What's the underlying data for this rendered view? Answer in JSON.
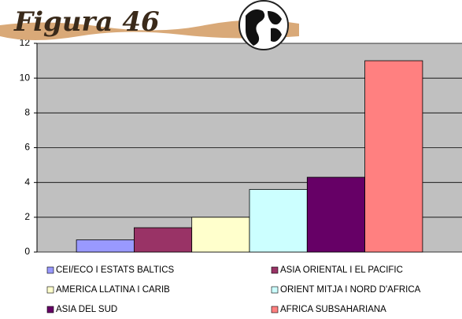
{
  "chart_data": {
    "type": "bar",
    "title": "Figura 46",
    "categories": [
      null
    ],
    "series": [
      {
        "name": "CEI/ECO I ESTATS BALTICS",
        "color": "#9999ff",
        "values": [
          0.7
        ]
      },
      {
        "name": "ASIA ORIENTAL I EL PACIFIC",
        "color": "#993366",
        "values": [
          1.4
        ]
      },
      {
        "name": "AMERICA LLATINA I CARIB",
        "color": "#ffffcc",
        "values": [
          2.0
        ]
      },
      {
        "name": "ORIENT MITJA I NORD D'AFRICA",
        "color": "#ccffff",
        "values": [
          3.6
        ]
      },
      {
        "name": "ASIA DEL SUD",
        "color": "#660066",
        "values": [
          4.3
        ]
      },
      {
        "name": "AFRICA SUBSAHARIANA",
        "color": "#ff8080",
        "values": [
          11.0
        ]
      }
    ],
    "ylim": [
      0,
      12
    ],
    "yticks": [
      0,
      2,
      4,
      6,
      8,
      10,
      12
    ],
    "grid": true,
    "plot_background": "#c0c0c0"
  }
}
